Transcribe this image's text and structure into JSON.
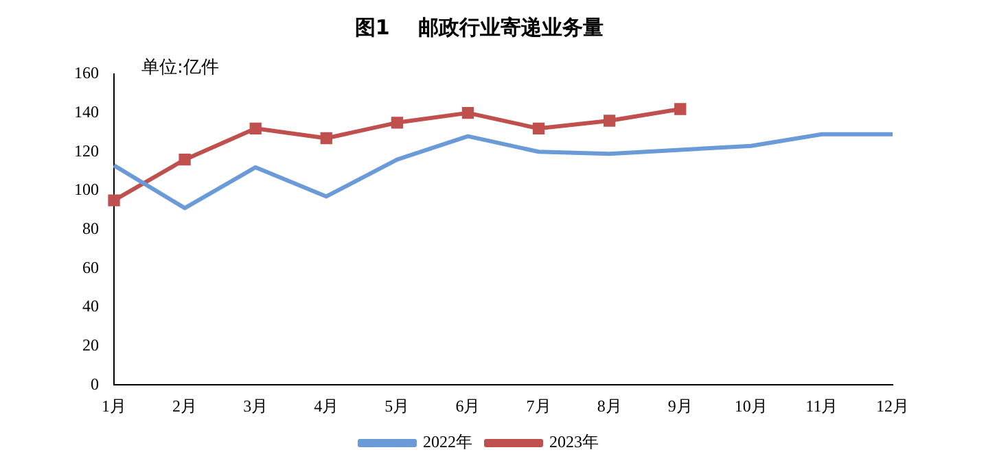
{
  "chart_data": {
    "type": "line",
    "title": "图1    邮政行业寄递业务量",
    "annotations": [
      "单位:亿件"
    ],
    "categories": [
      "1月",
      "2月",
      "3月",
      "4月",
      "5月",
      "6月",
      "7月",
      "8月",
      "9月",
      "10月",
      "11月",
      "12月"
    ],
    "series": [
      {
        "name": "2022年",
        "color": "#6a9ad8",
        "marker": "none",
        "values": [
          113,
          91,
          112,
          97,
          116,
          128,
          120,
          119,
          121,
          123,
          129,
          129
        ]
      },
      {
        "name": "2023年",
        "color": "#c0504d",
        "marker": "square",
        "values": [
          95,
          116,
          132,
          127,
          135,
          140,
          132,
          136,
          142,
          null,
          null,
          null
        ]
      }
    ],
    "ylim": [
      0,
      160
    ],
    "yticks": [
      0,
      20,
      40,
      60,
      80,
      100,
      120,
      140,
      160
    ],
    "grid": false,
    "legend": "bottom"
  }
}
